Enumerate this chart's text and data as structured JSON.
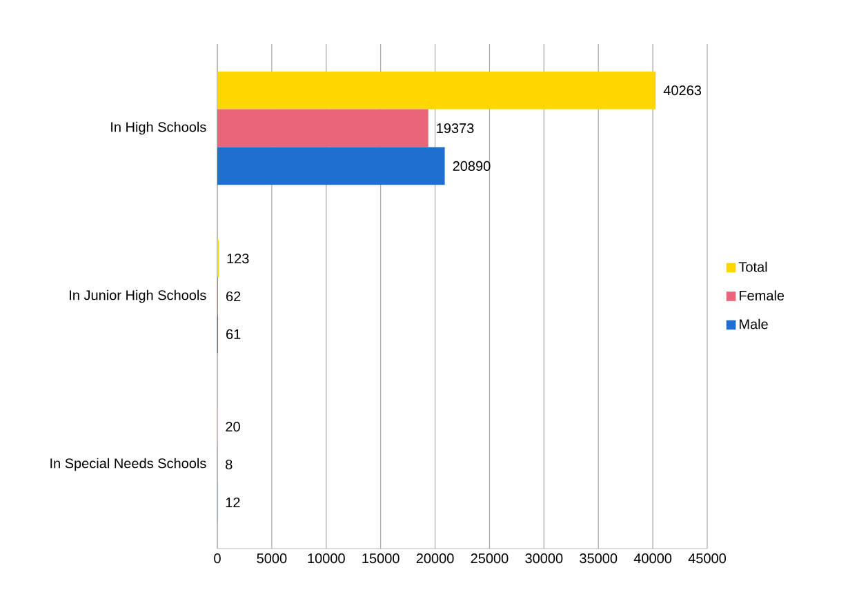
{
  "chart_data": {
    "type": "bar",
    "orientation": "horizontal",
    "categories": [
      "In High Schools",
      "In Junior High Schools",
      "In Special Needs Schools"
    ],
    "series": [
      {
        "name": "Total",
        "color": "#ffd700",
        "values": [
          40263,
          123,
          20
        ]
      },
      {
        "name": "Female",
        "color": "#e8657a",
        "values": [
          19373,
          62,
          8
        ]
      },
      {
        "name": "Male",
        "color": "#1f6fd0",
        "values": [
          20890,
          61,
          12
        ]
      }
    ],
    "xlim": [
      0,
      45000
    ],
    "xticks": [
      0,
      5000,
      10000,
      15000,
      20000,
      25000,
      30000,
      35000,
      40000,
      45000
    ],
    "grid": "x",
    "legend": "right",
    "data_labels": true
  }
}
